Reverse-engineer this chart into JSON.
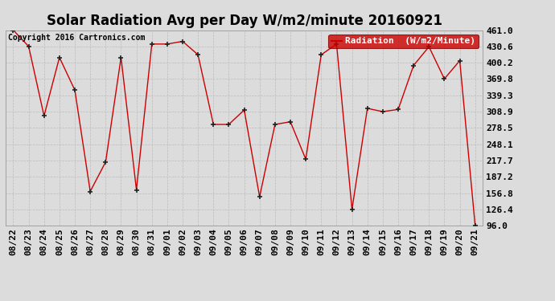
{
  "title": "Solar Radiation Avg per Day W/m2/minute 20160921",
  "copyright": "Copyright 2016 Cartronics.com",
  "legend_label": "Radiation  (W/m2/Minute)",
  "dates": [
    "08/22",
    "08/23",
    "08/24",
    "08/25",
    "08/26",
    "08/27",
    "08/28",
    "08/29",
    "08/30",
    "08/31",
    "09/01",
    "09/02",
    "09/03",
    "09/04",
    "09/05",
    "09/06",
    "09/07",
    "09/08",
    "09/09",
    "09/10",
    "09/11",
    "09/12",
    "09/13",
    "09/14",
    "09/15",
    "09/16",
    "09/17",
    "09/18",
    "09/19",
    "09/20",
    "09/21"
  ],
  "values": [
    461.0,
    430.6,
    300.9,
    410.0,
    349.0,
    160.0,
    215.0,
    410.0,
    163.0,
    435.0,
    435.0,
    440.0,
    415.0,
    285.0,
    285.0,
    312.0,
    150.0,
    285.0,
    290.0,
    220.0,
    415.0,
    435.0,
    126.4,
    315.0,
    308.9,
    313.0,
    395.0,
    430.0,
    370.0,
    404.0,
    96.0
  ],
  "ylim": [
    96.0,
    461.0
  ],
  "yticks": [
    96.0,
    126.4,
    156.8,
    187.2,
    217.7,
    248.1,
    278.5,
    308.9,
    339.3,
    369.8,
    400.2,
    430.6,
    461.0
  ],
  "line_color": "#cc0000",
  "marker_color": "#222222",
  "bg_color": "#dcdcdc",
  "plot_bg_color": "#dcdcdc",
  "grid_color": "#bbbbbb",
  "legend_bg": "#cc0000",
  "legend_text_color": "#ffffff",
  "title_fontsize": 12,
  "copyright_fontsize": 7,
  "tick_fontsize": 8,
  "legend_fontsize": 8
}
